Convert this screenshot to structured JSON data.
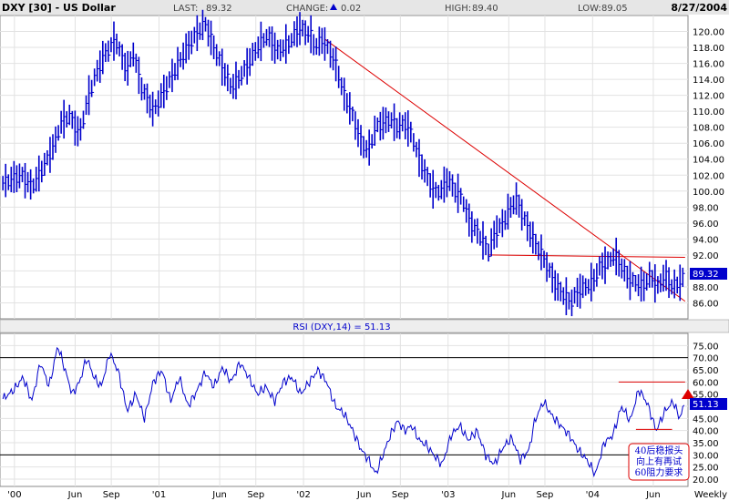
{
  "header": {
    "symbol": "DXY [30] - US Dollar",
    "last_label": "LAST:",
    "last_value": "89.32",
    "change_label": "CHANGE:",
    "change_value": "0.02",
    "high_label": "HIGH:",
    "high_value": "89.40",
    "low_label": "LOW:",
    "low_value": "89.05",
    "date": "8/27/2004"
  },
  "rsi_title": "RSI (DXY,14) = 51.13",
  "price_badge": "89.32",
  "rsi_badge": "51.13",
  "annotation": [
    "40后稳报头",
    "向上有再试",
    "60阻力要求"
  ],
  "period_label": "Weekly",
  "colors": {
    "accent_blue": "#0000cc",
    "trendline_red": "#dd0000",
    "grid": "#e2e2e2",
    "header_bg": "#e6e6e6"
  },
  "chart_data": [
    {
      "type": "line",
      "title": "DXY [30] - US Dollar",
      "style": "ohlc-bars",
      "xlim": [
        1999.9,
        2004.66
      ],
      "ylim": [
        84.0,
        122.0
      ],
      "y_ticks": [
        "86.00",
        "88.00",
        "90.00",
        "92.00",
        "94.00",
        "96.00",
        "98.00",
        "100.00",
        "102.00",
        "104.00",
        "106.00",
        "108.00",
        "110.00",
        "112.00",
        "114.00",
        "116.00",
        "118.00",
        "120.00"
      ],
      "x_ticks": [
        {
          "t": 2000.0,
          "label": "'00"
        },
        {
          "t": 2000.42,
          "label": "Jun"
        },
        {
          "t": 2000.67,
          "label": "Sep"
        },
        {
          "t": 2001.0,
          "label": "'01"
        },
        {
          "t": 2001.42,
          "label": "Jun"
        },
        {
          "t": 2001.67,
          "label": "Sep"
        },
        {
          "t": 2002.0,
          "label": "'02"
        },
        {
          "t": 2002.42,
          "label": "Jun"
        },
        {
          "t": 2002.67,
          "label": "Sep"
        },
        {
          "t": 2003.0,
          "label": "'03"
        },
        {
          "t": 2003.42,
          "label": "Jun"
        },
        {
          "t": 2003.67,
          "label": "Sep"
        },
        {
          "t": 2004.0,
          "label": "'04"
        },
        {
          "t": 2004.42,
          "label": "Jun"
        }
      ],
      "series": [
        {
          "x": [
            1999.92,
            2000.05,
            2000.12,
            2000.2,
            2000.28,
            2000.32,
            2000.38,
            2000.45,
            2000.5,
            2000.55,
            2000.62,
            2000.7,
            2000.78,
            2000.82,
            2000.88,
            2000.96,
            2001.05,
            2001.12,
            2001.18,
            2001.25,
            2001.32,
            2001.38,
            2001.45,
            2001.5,
            2001.55,
            2001.62,
            2001.68,
            2001.75,
            2001.82,
            2001.9,
            2001.97,
            2002.05,
            2002.08,
            2002.13,
            2002.18,
            2002.22,
            2002.28,
            2002.33,
            2002.4,
            2002.45,
            2002.5,
            2002.55,
            2002.6,
            2002.65,
            2002.7,
            2002.75,
            2002.8,
            2002.85,
            2002.9,
            2002.95,
            2003.0,
            2003.05,
            2003.1,
            2003.15,
            2003.2,
            2003.28,
            2003.33,
            2003.38,
            2003.42,
            2003.47,
            2003.55,
            2003.6,
            2003.65,
            2003.7,
            2003.75,
            2003.8,
            2003.85,
            2003.9,
            2003.95,
            2004.0,
            2004.05,
            2004.1,
            2004.15,
            2004.2,
            2004.25,
            2004.3,
            2004.35,
            2004.4,
            2004.45,
            2004.5,
            2004.55,
            2004.6,
            2004.64
          ],
          "y": [
            101.0,
            102.0,
            100.5,
            103.0,
            106.0,
            108.5,
            109.5,
            107.0,
            111.0,
            114.0,
            117.0,
            119.0,
            115.0,
            117.5,
            113.0,
            110.0,
            113.0,
            115.5,
            117.5,
            119.5,
            121.0,
            118.0,
            115.0,
            113.0,
            114.0,
            116.0,
            118.0,
            119.5,
            117.5,
            118.5,
            120.5,
            119.5,
            118.0,
            119.0,
            117.5,
            116.0,
            112.0,
            110.0,
            106.0,
            105.0,
            108.0,
            108.5,
            109.0,
            108.0,
            108.5,
            107.0,
            104.0,
            102.0,
            100.0,
            100.0,
            101.5,
            100.0,
            99.0,
            96.0,
            95.0,
            92.5,
            95.0,
            96.0,
            97.5,
            99.0,
            95.5,
            93.5,
            92.0,
            90.0,
            88.0,
            87.0,
            86.0,
            87.5,
            88.0,
            88.5,
            90.5,
            91.0,
            92.0,
            90.5,
            89.0,
            88.5,
            88.0,
            89.5,
            88.0,
            89.5,
            88.0,
            88.5,
            89.32
          ]
        }
      ],
      "trendlines": [
        {
          "x": [
            2002.15,
            2004.64
          ],
          "y": [
            119.0,
            86.2
          ]
        },
        {
          "x": [
            2003.28,
            2004.64
          ],
          "y": [
            92.0,
            91.7
          ]
        }
      ]
    },
    {
      "type": "line",
      "title": "RSI (DXY,14) = 51.13",
      "xlim": [
        1999.9,
        2004.66
      ],
      "ylim": [
        17.0,
        80.0
      ],
      "y_ticks": [
        "20.00",
        "25.00",
        "30.00",
        "35.00",
        "40.00",
        "45.00",
        "50.00",
        "55.00",
        "60.00",
        "65.00",
        "70.00",
        "75.00"
      ],
      "reference_lines": [
        70,
        30
      ],
      "series": [
        {
          "name": "RSI (DXY,14)",
          "x": [
            1999.92,
            2000.0,
            2000.06,
            2000.12,
            2000.18,
            2000.24,
            2000.3,
            2000.35,
            2000.4,
            2000.45,
            2000.5,
            2000.55,
            2000.6,
            2000.66,
            2000.72,
            2000.78,
            2000.84,
            2000.9,
            2000.96,
            2001.02,
            2001.08,
            2001.14,
            2001.2,
            2001.26,
            2001.32,
            2001.38,
            2001.44,
            2001.5,
            2001.56,
            2001.62,
            2001.68,
            2001.74,
            2001.8,
            2001.86,
            2001.92,
            2001.98,
            2002.04,
            2002.1,
            2002.16,
            2002.22,
            2002.28,
            2002.34,
            2002.4,
            2002.45,
            2002.5,
            2002.55,
            2002.6,
            2002.65,
            2002.7,
            2002.75,
            2002.8,
            2002.85,
            2002.9,
            2002.96,
            2003.02,
            2003.08,
            2003.14,
            2003.2,
            2003.26,
            2003.32,
            2003.38,
            2003.44,
            2003.5,
            2003.56,
            2003.6,
            2003.66,
            2003.72,
            2003.78,
            2003.84,
            2003.9,
            2003.96,
            2004.02,
            2004.08,
            2004.14,
            2004.2,
            2004.26,
            2004.32,
            2004.38,
            2004.44,
            2004.5,
            2004.56,
            2004.6,
            2004.64
          ],
          "values": [
            53,
            57,
            62,
            52,
            68,
            58,
            75,
            65,
            55,
            60,
            70,
            62,
            58,
            72,
            64,
            48,
            55,
            45,
            60,
            65,
            52,
            62,
            50,
            56,
            64,
            58,
            66,
            60,
            68,
            62,
            55,
            58,
            52,
            60,
            62,
            55,
            60,
            65,
            60,
            50,
            47,
            40,
            32,
            28,
            22,
            30,
            38,
            44,
            40,
            42,
            36,
            34,
            30,
            26,
            38,
            42,
            36,
            40,
            30,
            26,
            33,
            37,
            28,
            32,
            44,
            52,
            46,
            42,
            38,
            32,
            28,
            22,
            35,
            38,
            50,
            44,
            57,
            51,
            40,
            48,
            52,
            45,
            51.13
          ]
        }
      ],
      "annotation_lines": [
        {
          "x": [
            2004.18,
            2004.64
          ],
          "y": [
            60.0,
            60.0
          ]
        },
        {
          "x": [
            2004.3,
            2004.55
          ],
          "y": [
            40.5,
            40.5
          ]
        }
      ]
    }
  ]
}
